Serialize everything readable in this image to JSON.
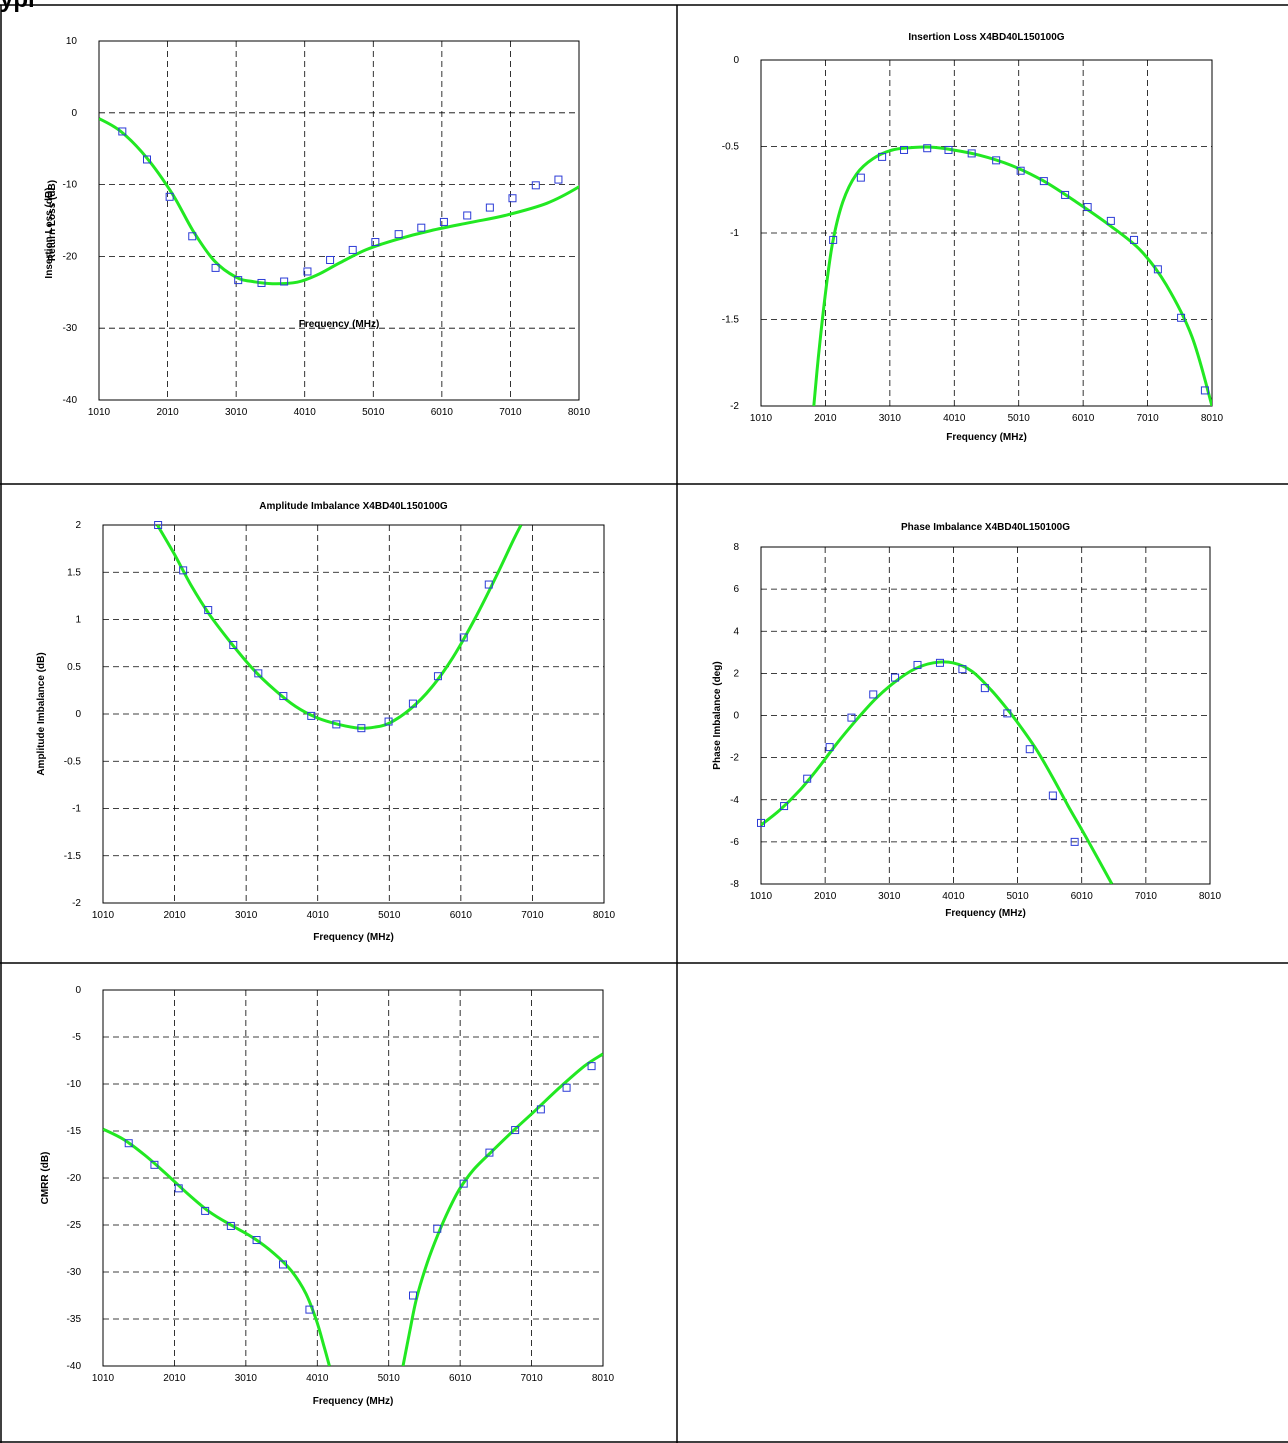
{
  "page": {
    "title_fragment": "ypi"
  },
  "style": {
    "curve_color": "#22e822",
    "marker_color": "#2b3bd6",
    "grid_color": "#000000"
  },
  "chart_data": [
    {
      "id": "return-loss",
      "type": "line",
      "title": "",
      "xlabel": "Frequency (MHz)",
      "ylabel": "Return Loss (dB)",
      "xlim": [
        1010,
        8010
      ],
      "ylim": [
        -40,
        10
      ],
      "x_ticks": [
        1010,
        2010,
        3010,
        4010,
        5010,
        6010,
        7010,
        8010
      ],
      "x_tick_labels": [
        "1010",
        "2010",
        "3010",
        "4010",
        "5010",
        "6010",
        "7010",
        "8010"
      ],
      "y_ticks": [
        10,
        0,
        -10,
        -20,
        -30,
        -40
      ],
      "y_tick_labels": [
        "10",
        "0",
        "-10",
        "-20",
        "-30",
        "-40"
      ],
      "grid": true,
      "curve": {
        "x": [
          1010,
          1330,
          1700,
          2080,
          2380,
          2690,
          3010,
          3250,
          3540,
          3900,
          4210,
          4520,
          4900,
          5330,
          5850,
          6410,
          6930,
          7540,
          8010,
          8110
        ],
        "y": [
          -0.8,
          -2.6,
          -6.2,
          -11.3,
          -16.4,
          -20.6,
          -22.9,
          -23.5,
          -23.8,
          -23.6,
          -22.5,
          -20.9,
          -19.1,
          -17.7,
          -16.4,
          -15.3,
          -14.3,
          -12.6,
          -10.3,
          -9.3
        ]
      },
      "markers": {
        "x": [
          1350,
          1710,
          2040,
          2370,
          2710,
          3040,
          3380,
          3710,
          4050,
          4380,
          4710,
          5040,
          5380,
          5710,
          6040,
          6380,
          6710,
          7040,
          7380,
          7710
        ],
        "y": [
          -2.6,
          -6.5,
          -11.7,
          -17.2,
          -21.6,
          -23.3,
          -23.7,
          -23.5,
          -22.1,
          -20.5,
          -19.1,
          -18.0,
          -16.9,
          -16.0,
          -15.2,
          -14.3,
          -13.2,
          -11.9,
          -10.1,
          -9.3
        ]
      }
    },
    {
      "id": "insertion-loss",
      "type": "line",
      "title": "Insertion Loss X4BD40L150100G",
      "xlabel": "Frequency (MHz)",
      "ylabel": "Insertion Loss (dB)",
      "xlim": [
        1010,
        8010
      ],
      "ylim": [
        -2,
        0
      ],
      "x_ticks": [
        1010,
        2010,
        3010,
        4010,
        5010,
        6010,
        7010,
        8010
      ],
      "x_tick_labels": [
        "1010",
        "2010",
        "3010",
        "4010",
        "5010",
        "6010",
        "7010",
        "8010"
      ],
      "y_ticks": [
        0,
        -0.5,
        -1,
        -1.5,
        -2
      ],
      "y_tick_labels": [
        "0",
        "-0.5",
        "-1",
        "-1.5",
        "-2"
      ],
      "grid": true,
      "curve": {
        "x": [
          1830,
          1900,
          2000,
          2120,
          2280,
          2490,
          2750,
          3050,
          3400,
          3700,
          4000,
          4400,
          4900,
          5400,
          5900,
          6400,
          6900,
          7300,
          7700,
          8010
        ],
        "y": [
          -2.0,
          -1.72,
          -1.38,
          -1.06,
          -0.82,
          -0.66,
          -0.57,
          -0.52,
          -0.505,
          -0.505,
          -0.52,
          -0.55,
          -0.61,
          -0.7,
          -0.82,
          -0.95,
          -1.1,
          -1.3,
          -1.6,
          -2.0
        ]
      },
      "markers": {
        "x": [
          2130,
          2560,
          2890,
          3230,
          3590,
          3920,
          4280,
          4660,
          5040,
          5400,
          5730,
          6080,
          6440,
          6800,
          7170,
          7530,
          7900
        ],
        "y": [
          -1.04,
          -0.68,
          -0.56,
          -0.52,
          -0.51,
          -0.52,
          -0.54,
          -0.58,
          -0.64,
          -0.7,
          -0.78,
          -0.85,
          -0.93,
          -1.04,
          -1.21,
          -1.49,
          -1.91
        ]
      }
    },
    {
      "id": "amplitude-imbalance",
      "type": "line",
      "title": "Amplitude Imbalance  X4BD40L150100G",
      "xlabel": "Frequency (MHz)",
      "ylabel": "Amplitude Imbalance (dB)",
      "xlim": [
        1010,
        8010
      ],
      "ylim": [
        -2,
        2
      ],
      "x_ticks": [
        1010,
        2010,
        3010,
        4010,
        5010,
        6010,
        7010,
        8010
      ],
      "x_tick_labels": [
        "1010",
        "2010",
        "3010",
        "4010",
        "5010",
        "6010",
        "7010",
        "8010"
      ],
      "y_ticks": [
        2,
        1.5,
        1,
        0.5,
        0,
        -0.5,
        -1,
        -1.5,
        -2
      ],
      "y_tick_labels": [
        "2",
        "1.5",
        "1",
        "0.5",
        "0",
        "-0.5",
        "-1",
        "-1.5",
        "-2"
      ],
      "grid": true,
      "curve": {
        "x": [
          1770,
          2000,
          2250,
          2500,
          2800,
          3100,
          3400,
          3700,
          4000,
          4300,
          4600,
          4800,
          5000,
          5300,
          5600,
          5900,
          6200,
          6500,
          6750,
          6850
        ],
        "y": [
          2.0,
          1.7,
          1.35,
          1.05,
          0.75,
          0.48,
          0.26,
          0.08,
          -0.04,
          -0.11,
          -0.15,
          -0.14,
          -0.1,
          0.05,
          0.28,
          0.6,
          1.0,
          1.45,
          1.85,
          2.0
        ]
      },
      "markers": {
        "x": [
          1780,
          2130,
          2480,
          2830,
          3180,
          3530,
          3920,
          4270,
          4620,
          5000,
          5340,
          5690,
          6050,
          6400
        ],
        "y": [
          2.0,
          1.52,
          1.1,
          0.73,
          0.43,
          0.19,
          -0.02,
          -0.11,
          -0.15,
          -0.08,
          0.11,
          0.4,
          0.81,
          1.37
        ]
      }
    },
    {
      "id": "phase-imbalance",
      "type": "line",
      "title": "Phase Imbalance  X4BD40L150100G",
      "xlabel": "Frequency (MHz)",
      "ylabel": "Phase Imbalance (deg)",
      "xlim": [
        1010,
        8010
      ],
      "ylim": [
        -8,
        8
      ],
      "x_ticks": [
        1010,
        2010,
        3010,
        4010,
        5010,
        6010,
        7010,
        8010
      ],
      "x_tick_labels": [
        "1010",
        "2010",
        "3010",
        "4010",
        "5010",
        "6010",
        "7010",
        "8010"
      ],
      "y_ticks": [
        8,
        6,
        4,
        2,
        0,
        -2,
        -4,
        -6,
        -8
      ],
      "y_tick_labels": [
        "8",
        "6",
        "4",
        "2",
        "0",
        "-2",
        "-4",
        "-6",
        "-8"
      ],
      "grid": true,
      "curve": {
        "x": [
          1010,
          1300,
          1600,
          1900,
          2200,
          2500,
          2800,
          3100,
          3400,
          3700,
          4000,
          4300,
          4600,
          4850,
          5050,
          5300,
          5550,
          5800,
          6100,
          6480
        ],
        "y": [
          -5.2,
          -4.5,
          -3.6,
          -2.5,
          -1.3,
          -0.2,
          0.8,
          1.6,
          2.2,
          2.5,
          2.5,
          2.1,
          1.2,
          0.3,
          -0.5,
          -1.6,
          -2.9,
          -4.3,
          -5.9,
          -8.0
        ]
      },
      "markers": {
        "x": [
          1010,
          1370,
          1730,
          2080,
          2420,
          2760,
          3100,
          3450,
          3800,
          4150,
          4500,
          4850,
          5200,
          5560,
          5900
        ],
        "y": [
          -5.1,
          -4.3,
          -3.0,
          -1.5,
          -0.1,
          1.0,
          1.8,
          2.4,
          2.5,
          2.2,
          1.3,
          0.1,
          -1.6,
          -3.8,
          -6.0
        ]
      }
    },
    {
      "id": "cmrr",
      "type": "line",
      "title": "",
      "xlabel": "Frequency (MHz)",
      "ylabel": "CMRR (dB)",
      "xlim": [
        1010,
        8010
      ],
      "ylim": [
        -40,
        0
      ],
      "x_ticks": [
        1010,
        2010,
        3010,
        4010,
        5010,
        6010,
        7010,
        8010
      ],
      "x_tick_labels": [
        "1010",
        "2010",
        "3010",
        "4010",
        "5010",
        "6010",
        "7010",
        "8010"
      ],
      "y_ticks": [
        0,
        -5,
        -10,
        -15,
        -20,
        -25,
        -30,
        -35,
        -40
      ],
      "y_tick_labels": [
        "0",
        "-5",
        "-10",
        "-15",
        "-20",
        "-25",
        "-30",
        "-35",
        "-40"
      ],
      "grid": true,
      "curve_segments": [
        {
          "x": [
            1010,
            1300,
            1600,
            1900,
            2200,
            2500,
            2800,
            3100,
            3400,
            3650,
            3850,
            4000,
            4100,
            4180
          ],
          "y": [
            -14.8,
            -15.9,
            -17.6,
            -19.6,
            -21.7,
            -23.6,
            -25.0,
            -26.3,
            -28.0,
            -29.9,
            -32.3,
            -35.2,
            -37.8,
            -40.0
          ]
        },
        {
          "x": [
            5210,
            5300,
            5400,
            5550,
            5700,
            5850,
            6000,
            6200,
            6450,
            6750,
            7050,
            7400,
            7750,
            8010
          ],
          "y": [
            -40.0,
            -36.5,
            -32.8,
            -29.0,
            -26.0,
            -23.4,
            -21.2,
            -19.1,
            -17.2,
            -15.0,
            -12.9,
            -10.4,
            -8.1,
            -6.8
          ]
        }
      ],
      "markers": {
        "x": [
          1370,
          1730,
          2070,
          2440,
          2800,
          3160,
          3530,
          3900,
          5350,
          5690,
          6060,
          6420,
          6780,
          7140,
          7500,
          7850
        ],
        "y": [
          -16.3,
          -18.6,
          -21.1,
          -23.5,
          -25.1,
          -26.6,
          -29.2,
          -34.0,
          -32.5,
          -25.4,
          -20.6,
          -17.3,
          -14.9,
          -12.7,
          -10.4,
          -8.1
        ]
      }
    }
  ]
}
